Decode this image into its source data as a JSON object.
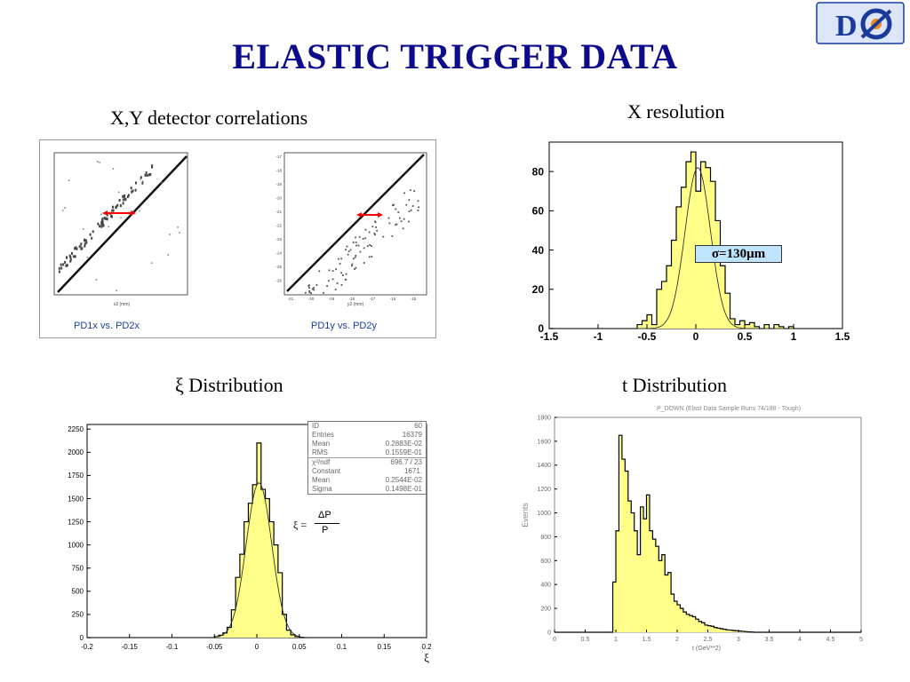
{
  "title": "ELASTIC TRIGGER DATA",
  "logo": {
    "text": "D0",
    "icon": "d0-experiment-logo",
    "colors": {
      "blue": "#1a3a9c",
      "orange": "#f08a1c"
    }
  },
  "colors": {
    "title": "#0b0b8c",
    "fill": "#ffff88",
    "accent": "#ff0000",
    "axis_gray": "#888888"
  },
  "panels": {
    "correlations": {
      "heading": "X,Y detector correlations",
      "left_label": "PD1x vs. PD2x",
      "right_label": "PD1y vs. PD2y",
      "left_xlabel": "x2 (mm)",
      "right_xlabel": "y2 (mm)",
      "right_yticks": [
        "-17",
        "-18",
        "-19",
        "-20",
        "-21",
        "-22",
        "-23",
        "-24",
        "-25",
        "-26"
      ],
      "right_xticks": [
        "-21",
        "-20",
        "-19",
        "-18",
        "-17",
        "-16",
        "-15"
      ]
    },
    "xres": {
      "heading": "X resolution",
      "annotation": "σ=130μm"
    },
    "xi": {
      "heading": "ξ Distribution",
      "formula": {
        "lhs": "ξ =",
        "num": "ΔP",
        "den": "P"
      },
      "xaxis_label": "ξ",
      "stats": [
        [
          "ID",
          "60"
        ],
        [
          "Entries",
          "16379"
        ],
        [
          "Mean",
          "0.2883E-02"
        ],
        [
          "RMS",
          "0.1559E-01"
        ],
        [
          "χ²/ndf",
          "696.7  /  23"
        ],
        [
          "Constant",
          "1671."
        ],
        [
          "Mean",
          "0.2544E-02"
        ],
        [
          "Sigma",
          "0.1498E-01"
        ]
      ]
    },
    "tdist": {
      "heading": "t Distribution",
      "plot_title": "P_DOWN (Elast Data Sample Runs 74/188 - Tough)",
      "ylabel": "Events",
      "xlabel": "t (GeV**2)"
    }
  },
  "chart_data": [
    {
      "type": "histogram",
      "id": "x-resolution",
      "title": "X resolution",
      "xlim": [
        -1.5,
        1.5
      ],
      "ylim": [
        0,
        95
      ],
      "xticks": [
        -1.5,
        -1,
        -0.5,
        0,
        0.5,
        1,
        1.5
      ],
      "yticks": [
        0,
        20,
        40,
        60,
        80
      ],
      "xticklabels": [
        "-1.5",
        "-1",
        "-0.5",
        "0",
        "0.5",
        "1",
        "1.5"
      ],
      "yticklabels": [
        "0",
        "20",
        "40",
        "60",
        "80"
      ],
      "bin_edges": [
        -1.5,
        -1.45,
        -1.4,
        -1.35,
        -1.3,
        -1.25,
        -1.2,
        -1.15,
        -1.1,
        -1.05,
        -1.0,
        -0.95,
        -0.9,
        -0.85,
        -0.8,
        -0.75,
        -0.7,
        -0.65,
        -0.6,
        -0.55,
        -0.5,
        -0.45,
        -0.4,
        -0.35,
        -0.3,
        -0.25,
        -0.2,
        -0.15,
        -0.1,
        -0.05,
        0.0,
        0.05,
        0.1,
        0.15,
        0.2,
        0.25,
        0.3,
        0.35,
        0.4,
        0.45,
        0.5,
        0.55,
        0.6,
        0.65,
        0.7,
        0.75,
        0.8,
        0.85,
        0.9,
        0.95,
        1.0,
        1.05,
        1.1,
        1.15,
        1.2,
        1.25,
        1.3,
        1.35,
        1.4,
        1.45,
        1.5
      ],
      "counts": [
        0,
        0,
        0,
        0,
        0,
        0,
        0,
        0,
        0,
        0,
        0,
        0,
        0,
        0,
        0,
        0,
        0,
        0,
        2,
        4,
        7,
        2,
        20,
        24,
        32,
        45,
        62,
        72,
        85,
        90,
        70,
        85,
        82,
        75,
        55,
        32,
        18,
        5,
        2,
        4,
        2,
        3,
        1,
        0,
        2,
        0,
        2,
        1,
        0,
        1,
        0,
        0,
        0,
        0,
        0,
        0,
        0,
        0,
        0,
        0
      ],
      "fit": "gaussian",
      "fit_params": {
        "amplitude": 82,
        "mean": 0.02,
        "sigma": 0.13
      },
      "annotation": "σ=130μm"
    },
    {
      "type": "histogram",
      "id": "xi-distribution",
      "title": "ξ Distribution",
      "xlabel": "ξ",
      "xlim": [
        -0.2,
        0.2
      ],
      "ylim": [
        0,
        2300
      ],
      "xticks": [
        -0.2,
        -0.15,
        -0.1,
        -0.05,
        0,
        0.05,
        0.1,
        0.15,
        0.2
      ],
      "xticklabels": [
        "-0.2",
        "-0.15",
        "-0.1",
        "-0.05",
        "0",
        "0.05",
        "0.1",
        "0.15",
        "0.2"
      ],
      "yticks": [
        0,
        250,
        500,
        750,
        1000,
        1250,
        1500,
        1750,
        2000,
        2250
      ],
      "yticklabels": [
        "0",
        "250",
        "500",
        "750",
        "1000",
        "1250",
        "1500",
        "1750",
        "2000",
        "2250"
      ],
      "bin_edges": [
        -0.2,
        -0.195,
        -0.19,
        -0.185,
        -0.18,
        -0.175,
        -0.17,
        -0.165,
        -0.16,
        -0.155,
        -0.15,
        -0.145,
        -0.14,
        -0.135,
        -0.13,
        -0.125,
        -0.12,
        -0.115,
        -0.11,
        -0.105,
        -0.1,
        -0.095,
        -0.09,
        -0.085,
        -0.08,
        -0.075,
        -0.07,
        -0.065,
        -0.06,
        -0.055,
        -0.05,
        -0.045,
        -0.04,
        -0.035,
        -0.03,
        -0.025,
        -0.02,
        -0.015,
        -0.01,
        -0.005,
        0.0,
        0.005,
        0.01,
        0.015,
        0.02,
        0.025,
        0.03,
        0.035,
        0.04,
        0.045,
        0.05,
        0.055,
        0.06,
        0.065,
        0.07,
        0.075,
        0.08,
        0.085,
        0.09,
        0.095,
        0.1,
        0.105,
        0.11,
        0.115,
        0.12,
        0.125,
        0.13,
        0.135,
        0.14,
        0.145,
        0.15,
        0.155,
        0.16,
        0.165,
        0.17,
        0.175,
        0.18,
        0.185,
        0.19,
        0.195,
        0.2
      ],
      "counts": [
        0,
        0,
        0,
        0,
        0,
        0,
        0,
        0,
        0,
        0,
        0,
        0,
        0,
        0,
        0,
        0,
        0,
        0,
        0,
        0,
        0,
        0,
        0,
        0,
        0,
        0,
        0,
        0,
        0,
        0,
        10,
        25,
        50,
        110,
        300,
        650,
        900,
        1250,
        1450,
        1650,
        2100,
        1600,
        1500,
        1250,
        1000,
        700,
        250,
        80,
        30,
        10,
        0,
        0,
        0,
        0,
        0,
        0,
        0,
        0,
        0,
        0,
        0,
        0,
        0,
        0,
        0,
        0,
        0,
        0,
        0,
        0,
        0,
        0,
        0,
        0,
        0,
        0,
        0,
        0,
        0,
        0
      ],
      "fit": "gaussian",
      "fit_params": {
        "constant": 1671,
        "mean": 0.002544,
        "sigma": 0.01498
      }
    },
    {
      "type": "histogram",
      "id": "t-distribution",
      "title": "P_DOWN (Elast Data Sample Runs 74/188 - Tough)",
      "xlabel": "t (GeV**2)",
      "ylabel": "Events",
      "xlim": [
        0,
        5
      ],
      "ylim": [
        0,
        1800
      ],
      "xticks": [
        0,
        0.5,
        1,
        1.5,
        2,
        2.5,
        3,
        3.5,
        4,
        4.5,
        5
      ],
      "xticklabels": [
        "0",
        "0.5",
        "1",
        "1.5",
        "2",
        "2.5",
        "3",
        "3.5",
        "4",
        "4.5",
        "5"
      ],
      "yticks": [
        0,
        200,
        400,
        600,
        800,
        1000,
        1200,
        1400,
        1600,
        1800
      ],
      "yticklabels": [
        "0",
        "200",
        "400",
        "600",
        "800",
        "1000",
        "1200",
        "1400",
        "1600",
        "1800"
      ],
      "bin_edges": [
        0.0,
        0.05,
        0.1,
        0.15,
        0.2,
        0.25,
        0.3,
        0.35,
        0.4,
        0.45,
        0.5,
        0.55,
        0.6,
        0.65,
        0.7,
        0.75,
        0.8,
        0.85,
        0.9,
        0.95,
        1.0,
        1.05,
        1.1,
        1.15,
        1.2,
        1.25,
        1.3,
        1.35,
        1.4,
        1.45,
        1.5,
        1.55,
        1.6,
        1.65,
        1.7,
        1.75,
        1.8,
        1.85,
        1.9,
        1.95,
        2.0,
        2.05,
        2.1,
        2.15,
        2.2,
        2.25,
        2.3,
        2.35,
        2.4,
        2.45,
        2.5,
        2.55,
        2.6,
        2.65,
        2.7,
        2.75,
        2.8,
        2.85,
        2.9,
        2.95,
        3.0,
        3.05,
        3.1,
        3.15,
        3.2,
        3.25,
        3.3,
        3.35,
        3.4,
        3.45,
        3.5,
        3.55,
        3.6,
        3.65,
        3.7,
        3.75,
        3.8,
        3.85,
        3.9,
        3.95,
        4.0,
        4.05,
        4.1,
        4.15,
        4.2,
        4.25,
        4.3,
        4.35,
        4.4,
        4.45,
        4.5,
        4.55,
        4.6,
        4.65,
        4.7,
        4.75,
        4.8,
        4.85,
        4.9,
        4.95,
        5.0
      ],
      "counts": [
        0,
        0,
        0,
        0,
        0,
        0,
        0,
        0,
        0,
        0,
        0,
        0,
        0,
        0,
        0,
        0,
        0,
        0,
        0,
        0,
        0,
        0,
        0,
        0,
        0,
        0,
        0,
        0,
        0,
        0,
        0,
        0,
        0,
        0,
        0,
        0,
        0,
        0,
        0,
        0,
        0,
        0,
        0,
        0,
        0,
        0,
        0,
        0,
        0,
        0,
        0,
        0,
        0,
        0,
        0,
        0,
        0,
        0,
        0,
        0,
        0,
        0,
        0,
        0,
        0,
        0,
        0,
        0,
        0,
        0,
        0,
        0,
        0,
        0,
        0,
        0,
        0,
        0,
        0,
        0,
        0,
        0,
        0,
        0,
        0,
        0,
        0,
        0,
        0,
        0,
        0,
        0,
        0,
        0,
        0,
        0,
        0,
        0,
        0,
        0
      ],
      "counts_nonzero": {
        "from_bin": 19,
        "values": [
          420,
          850,
          1650,
          1450,
          1350,
          1100,
          1000,
          850,
          650,
          1050,
          950,
          1150,
          850,
          780,
          720,
          600,
          650,
          480,
          500,
          320,
          260,
          230,
          200,
          170,
          150,
          140,
          130,
          110,
          90,
          80,
          60,
          55,
          50,
          40,
          35,
          30,
          25,
          20,
          18,
          15,
          12,
          10,
          8,
          5,
          3,
          2
        ]
      }
    }
  ]
}
